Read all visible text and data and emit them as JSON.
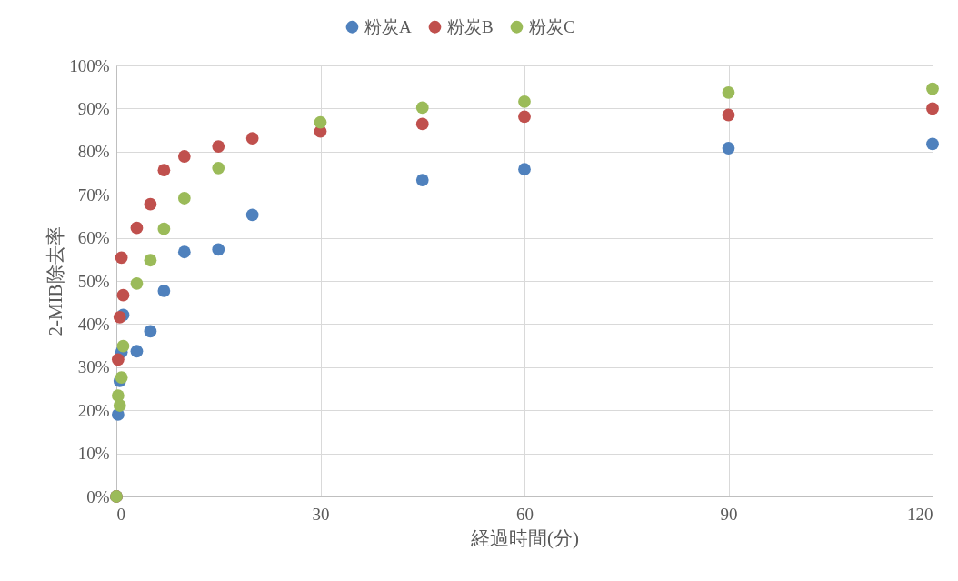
{
  "chart_data": {
    "type": "scatter",
    "xlabel": "経過時間(分)",
    "ylabel": "2-MIB除去率",
    "xlim": [
      0,
      120
    ],
    "xticks": [
      0,
      30,
      60,
      90,
      120
    ],
    "ylim": [
      0,
      100
    ],
    "yticks": [
      {
        "value": 0,
        "label": "0%"
      },
      {
        "value": 10,
        "label": "10%"
      },
      {
        "value": 20,
        "label": "20%"
      },
      {
        "value": 30,
        "label": "30%"
      },
      {
        "value": 40,
        "label": "40%"
      },
      {
        "value": 50,
        "label": "50%"
      },
      {
        "value": 60,
        "label": "60%"
      },
      {
        "value": 70,
        "label": "70%"
      },
      {
        "value": 80,
        "label": "80%"
      },
      {
        "value": 90,
        "label": "90%"
      },
      {
        "value": 100,
        "label": "100%"
      }
    ],
    "grid": true,
    "legend": "top",
    "marker": "circle",
    "series": [
      {
        "name": "粉炭A",
        "color": "#4f81bd",
        "x": [
          0,
          0.25,
          0.5,
          0.75,
          1,
          3,
          5,
          7,
          10,
          15,
          20,
          45,
          60,
          90,
          120
        ],
        "values": [
          0,
          19.0,
          26.8,
          33.5,
          42.1,
          33.7,
          38.3,
          47.7,
          56.7,
          57.3,
          65.3,
          73.4,
          75.9,
          80.8,
          81.8
        ]
      },
      {
        "name": "粉炭B",
        "color": "#c0504d",
        "x": [
          0,
          0.25,
          0.5,
          0.75,
          1,
          3,
          5,
          7,
          10,
          15,
          20,
          30,
          45,
          60,
          90,
          120
        ],
        "values": [
          0,
          31.8,
          41.6,
          55.4,
          46.7,
          62.3,
          67.8,
          75.7,
          78.9,
          81.2,
          83.1,
          84.7,
          86.4,
          88.1,
          88.5,
          90.0
        ]
      },
      {
        "name": "粉炭C",
        "color": "#9bbb59",
        "x": [
          0,
          0.25,
          0.5,
          0.75,
          1,
          3,
          5,
          7,
          10,
          15,
          30,
          45,
          60,
          90,
          120
        ],
        "values": [
          0,
          23.4,
          21.1,
          27.6,
          34.9,
          49.4,
          54.8,
          62.1,
          69.2,
          76.2,
          86.8,
          90.2,
          91.6,
          93.7,
          94.6
        ]
      }
    ]
  }
}
